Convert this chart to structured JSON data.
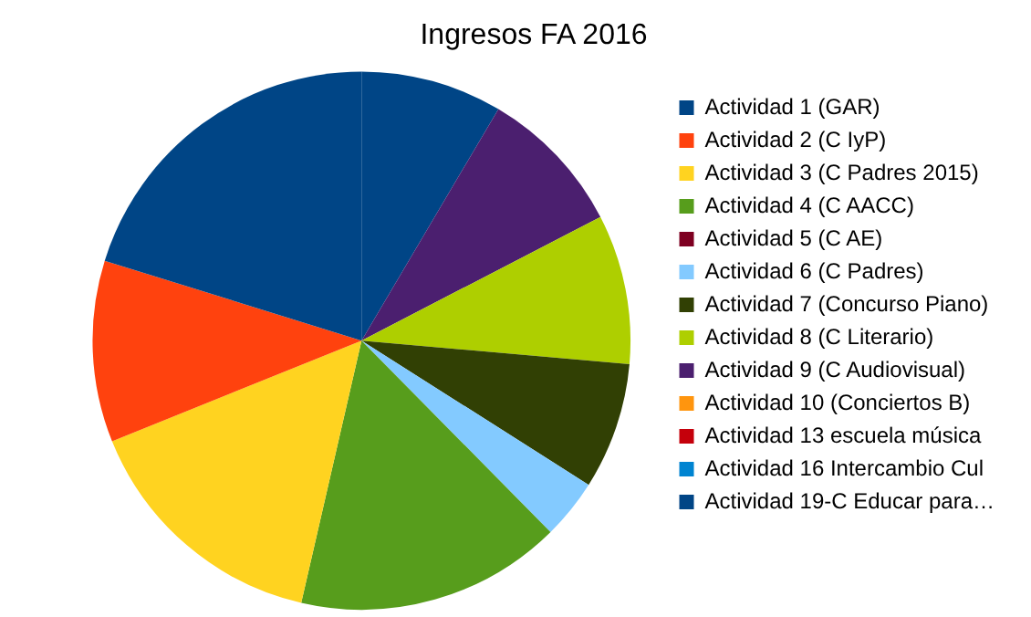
{
  "chart_data": {
    "type": "pie",
    "title": "Ingresos FA 2016",
    "categories": [
      "Actividad 1 (GAR)",
      "Actividad 2 (C IyP)",
      "Actividad 3 (C Padres 2015)",
      "Actividad 4 (C AACC)",
      "Actividad 5 (C AE)",
      "Actividad 6 (C Padres)",
      "Actividad 7 (Concurso Piano)",
      "Actividad 8 (C Literario)",
      "Actividad 9 (C Audiovisual)",
      "Actividad 10 (Conciertos B)",
      "Actividad 13 escuela música",
      "Actividad 16 Intercambio Cul",
      "Actividad 19-C Educar para…"
    ],
    "values": [
      20.2,
      10.9,
      15.3,
      16.0,
      0,
      3.6,
      7.6,
      9.0,
      8.9,
      0,
      0,
      0,
      8.5
    ],
    "colors": [
      "#004586",
      "#ff420e",
      "#ffd320",
      "#579d1c",
      "#7e0021",
      "#83caff",
      "#314004",
      "#aecf00",
      "#4b1f6f",
      "#ff950e",
      "#c5000b",
      "#0084d1",
      "#004586"
    ],
    "legend": "right"
  }
}
